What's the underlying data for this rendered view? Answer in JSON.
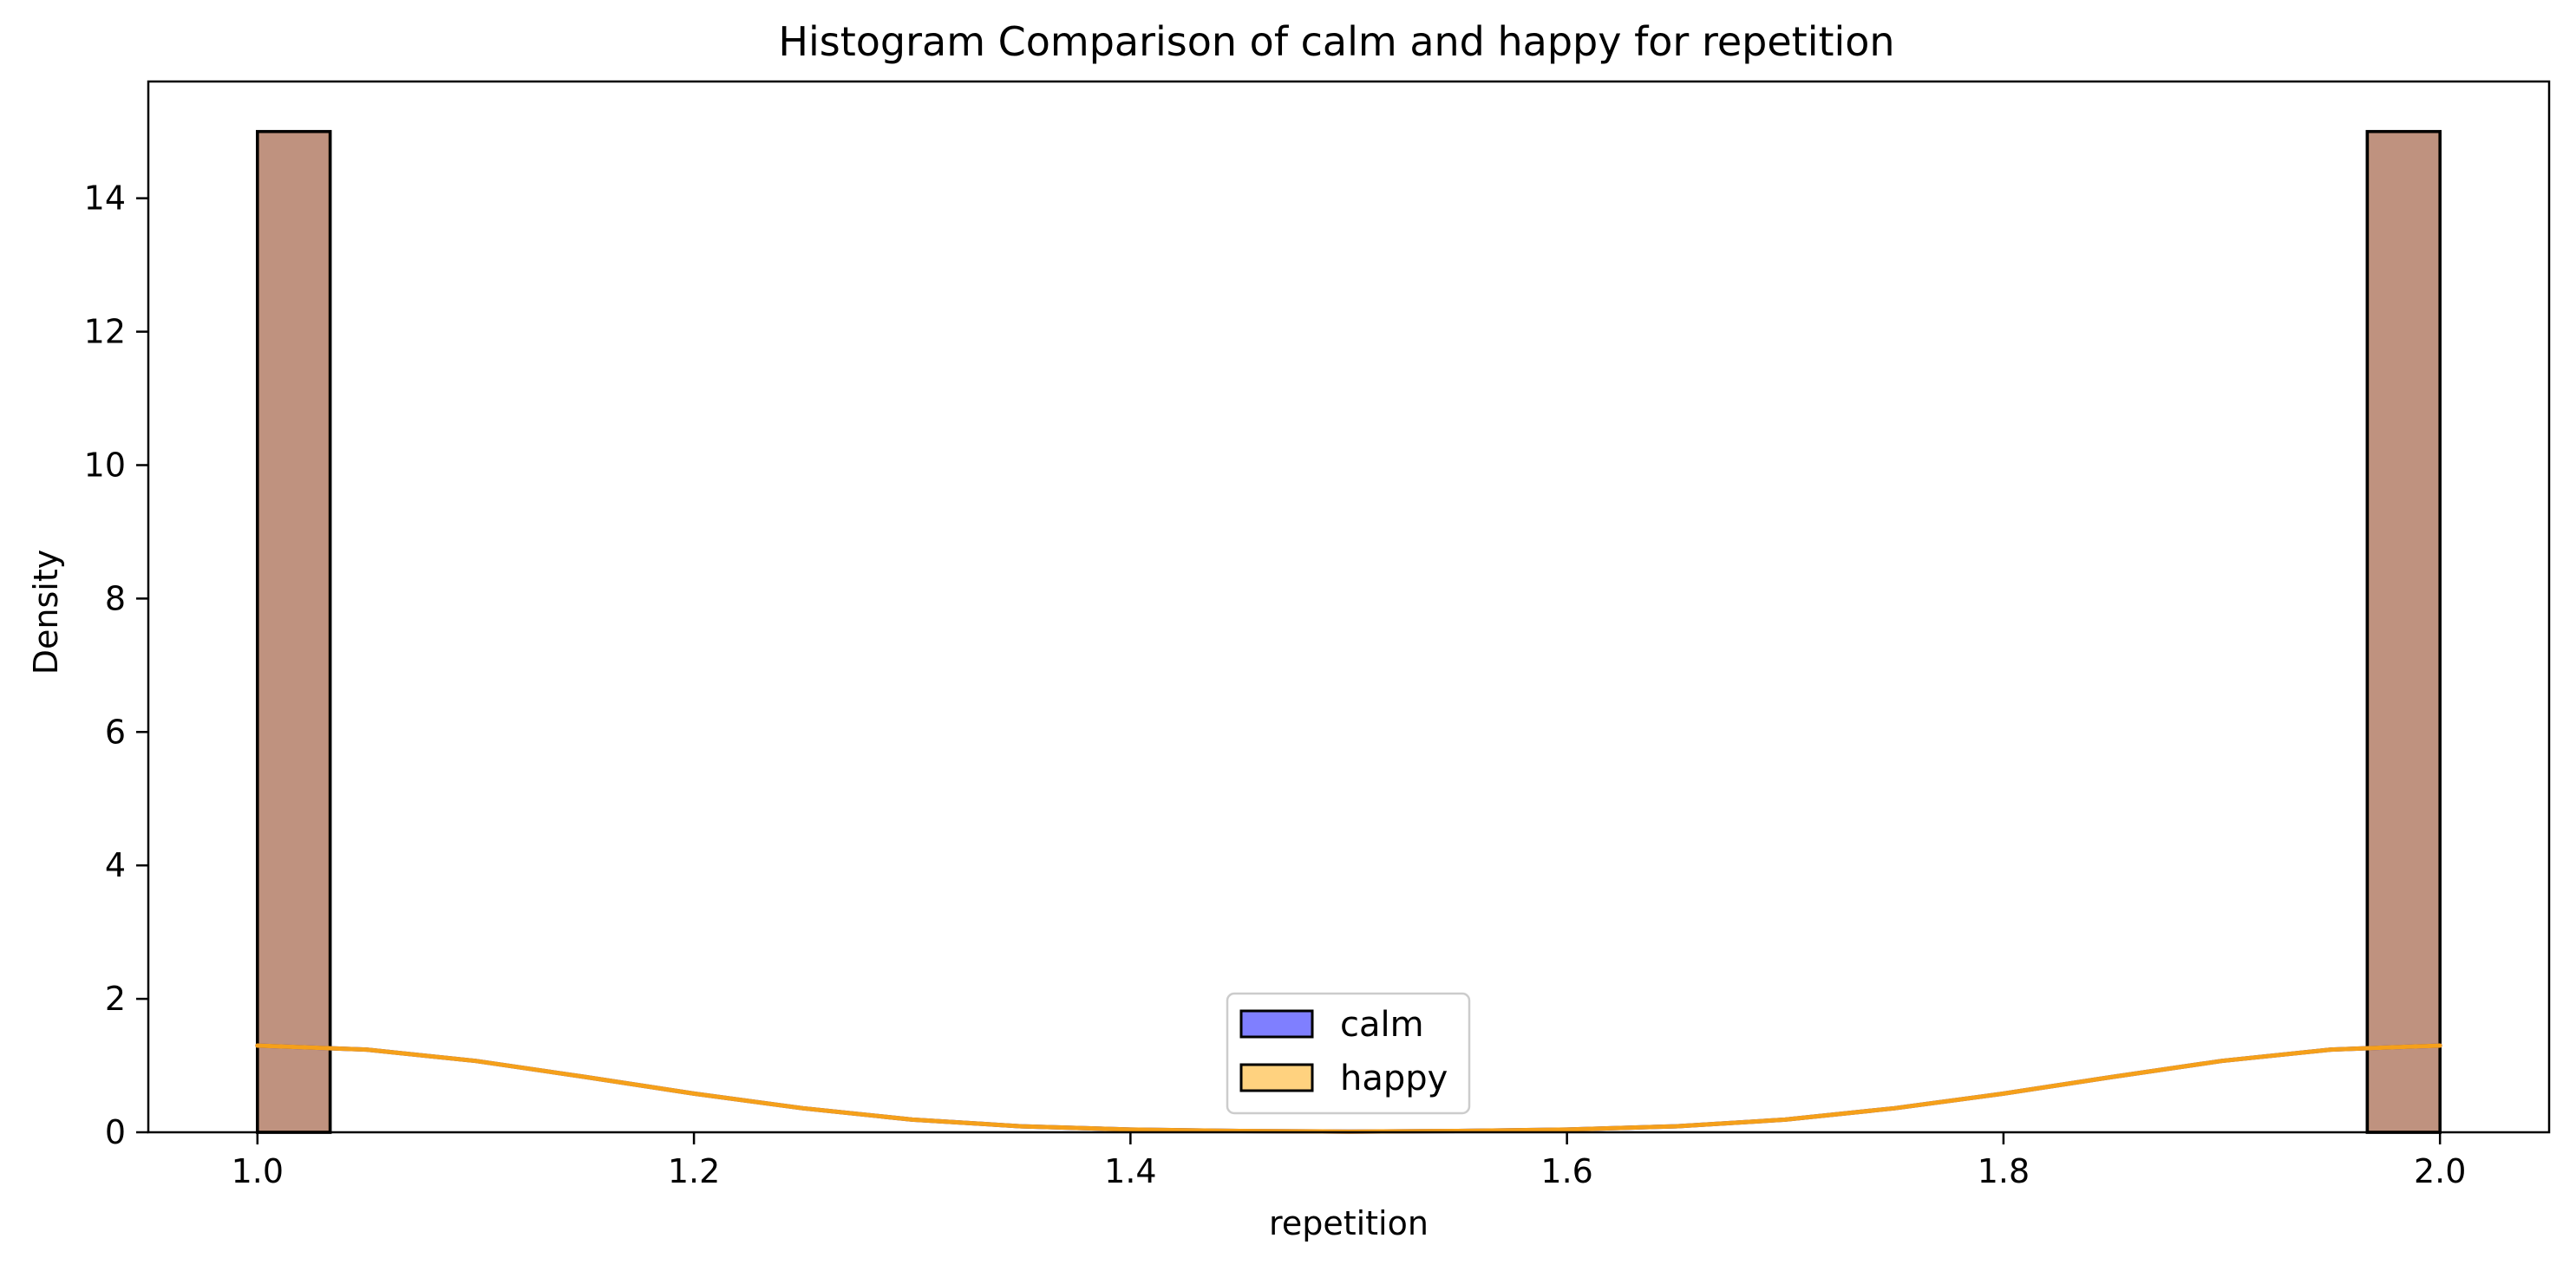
{
  "chart_data": {
    "type": "bar",
    "title": "Histogram Comparison of calm and happy for repetition",
    "xlabel": "repetition",
    "ylabel": "Density",
    "xlim": [
      0.95,
      2.05
    ],
    "ylim": [
      0,
      15.75
    ],
    "x_ticks": [
      {
        "value": 1.0,
        "label": "1.0"
      },
      {
        "value": 1.2,
        "label": "1.2"
      },
      {
        "value": 1.4,
        "label": "1.4"
      },
      {
        "value": 1.6,
        "label": "1.6"
      },
      {
        "value": 1.8,
        "label": "1.8"
      },
      {
        "value": 2.0,
        "label": "2.0"
      }
    ],
    "y_ticks": [
      {
        "value": 0,
        "label": "0"
      },
      {
        "value": 2,
        "label": "2"
      },
      {
        "value": 4,
        "label": "4"
      },
      {
        "value": 6,
        "label": "6"
      },
      {
        "value": 8,
        "label": "8"
      },
      {
        "value": 10,
        "label": "10"
      },
      {
        "value": 12,
        "label": "12"
      },
      {
        "value": 14,
        "label": "14"
      }
    ],
    "grid": false,
    "legend_position": "bottom-center",
    "series": [
      {
        "name": "calm",
        "color": "#0000ff",
        "kde_color": "#1f1fcc",
        "bins": [
          {
            "x0": 1.0,
            "x1": 1.0333,
            "value": 15
          },
          {
            "x0": 1.9667,
            "x1": 2.0,
            "value": 15
          }
        ],
        "kde": {
          "x": [
            1.0,
            1.05,
            1.1,
            1.15,
            1.2,
            1.25,
            1.3,
            1.35,
            1.4,
            1.45,
            1.5,
            1.55,
            1.6,
            1.65,
            1.7,
            1.75,
            1.8,
            1.85,
            1.9,
            1.95,
            2.0
          ],
          "y": [
            1.3,
            1.24,
            1.07,
            0.83,
            0.58,
            0.36,
            0.19,
            0.09,
            0.04,
            0.02,
            0.01,
            0.02,
            0.04,
            0.09,
            0.19,
            0.36,
            0.58,
            0.83,
            1.07,
            1.24,
            1.3
          ]
        }
      },
      {
        "name": "happy",
        "color": "#ffa500",
        "kde_color": "#f5a01a",
        "bins": [
          {
            "x0": 1.0,
            "x1": 1.0333,
            "value": 15
          },
          {
            "x0": 1.9667,
            "x1": 2.0,
            "value": 15
          }
        ],
        "kde": {
          "x": [
            1.0,
            1.05,
            1.1,
            1.15,
            1.2,
            1.25,
            1.3,
            1.35,
            1.4,
            1.45,
            1.5,
            1.55,
            1.6,
            1.65,
            1.7,
            1.75,
            1.8,
            1.85,
            1.9,
            1.95,
            2.0
          ],
          "y": [
            1.3,
            1.24,
            1.07,
            0.83,
            0.58,
            0.36,
            0.19,
            0.09,
            0.04,
            0.02,
            0.01,
            0.02,
            0.04,
            0.09,
            0.19,
            0.36,
            0.58,
            0.83,
            1.07,
            1.24,
            1.3
          ]
        }
      }
    ]
  }
}
